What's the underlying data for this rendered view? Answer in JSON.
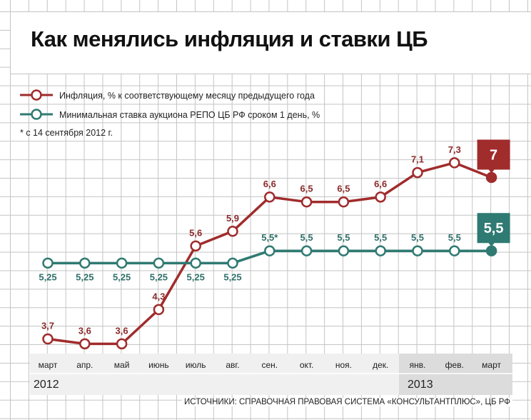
{
  "title": "Как менялись инфляция и ставки ЦБ",
  "source": "ИСТОЧНИКИ: СПРАВОЧНАЯ ПРАВОВАЯ СИСТЕМА «КОНСУЛЬТАНТПЛЮС», ЦБ РФ",
  "colors": {
    "inflation": "#a02c2c",
    "repo": "#2f7a72",
    "band_2012": "#f0f0f0",
    "band_2013": "#dcdcdc"
  },
  "chart_data": {
    "type": "line",
    "title": "Как менялись инфляция и ставки ЦБ",
    "categories": [
      "март",
      "апр.",
      "май",
      "июнь",
      "июль",
      "авг.",
      "сен.",
      "окт.",
      "ноя.",
      "дек.",
      "янв.",
      "фев.",
      "март"
    ],
    "years": [
      {
        "label": "2012",
        "start_index": 0
      },
      {
        "label": "2013",
        "start_index": 10
      }
    ],
    "series": [
      {
        "name": "Инфляция, % к соответствующему месяцу предыдущего года",
        "values": [
          3.7,
          3.6,
          3.6,
          4.3,
          5.6,
          5.9,
          6.6,
          6.5,
          6.5,
          6.6,
          7.1,
          7.3,
          7
        ],
        "labels": [
          "3,7",
          "3,6",
          "3,6",
          "4,3",
          "5,6",
          "5,9",
          "6,6",
          "6,5",
          "6,5",
          "6,6",
          "7,1",
          "7,3",
          "7"
        ]
      },
      {
        "name": "Минимальная ставка аукциона РЕПО ЦБ РФ сроком 1 день, %",
        "values": [
          5.25,
          5.25,
          5.25,
          5.25,
          5.25,
          5.25,
          5.5,
          5.5,
          5.5,
          5.5,
          5.5,
          5.5,
          5.5
        ],
        "labels": [
          "5,25",
          "5,25",
          "5,25",
          "5,25",
          "5,25",
          "5,25",
          "5,5*",
          "5,5",
          "5,5",
          "5,5",
          "5,5",
          "5,5",
          "5,5"
        ]
      }
    ],
    "note": "* с 14 сентября 2012 г.",
    "grid": true,
    "legend_position": "top-left"
  }
}
